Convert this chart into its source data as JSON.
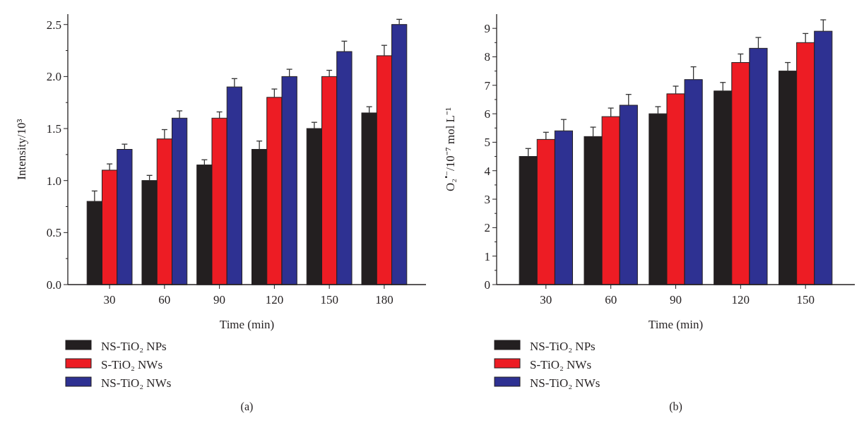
{
  "chart_data": [
    {
      "type": "bar",
      "title": "(a)",
      "xlabel": "Time (min)",
      "ylabel": "Intensity/10³",
      "categories": [
        "30",
        "60",
        "90",
        "120",
        "150",
        "180"
      ],
      "ylim": [
        0,
        2.6
      ],
      "yticks": [
        {
          "value": 0,
          "label": "0.0"
        },
        {
          "value": 0.25,
          "label": null
        },
        {
          "value": 0.5,
          "label": "0.5"
        },
        {
          "value": 0.75,
          "label": null
        },
        {
          "value": 1,
          "label": "1.0"
        },
        {
          "value": 1.25,
          "label": null
        },
        {
          "value": 1.5,
          "label": "1.5"
        },
        {
          "value": 1.75,
          "label": null
        },
        {
          "value": 2,
          "label": "2.0"
        },
        {
          "value": 2.25,
          "label": null
        },
        {
          "value": 2.5,
          "label": "2.5"
        }
      ],
      "legend": "bottom left",
      "series": [
        {
          "name": "NS-TiO₂ NPs",
          "color": "#231f20",
          "values": [
            0.8,
            1.0,
            1.15,
            1.3,
            1.5,
            1.65
          ],
          "errors": [
            [
              0.8,
              0.9
            ],
            [
              1.0,
              1.05
            ],
            [
              1.15,
              1.2
            ],
            [
              1.3,
              1.38
            ],
            [
              1.5,
              1.56
            ],
            [
              1.65,
              1.71
            ]
          ]
        },
        {
          "name": "S-TiO₂ NWs",
          "color": "#ed1c24",
          "values": [
            1.1,
            1.4,
            1.6,
            1.8,
            2.0,
            2.2
          ],
          "errors": [
            [
              1.1,
              1.16
            ],
            [
              1.4,
              1.49
            ],
            [
              1.6,
              1.66
            ],
            [
              1.8,
              1.88
            ],
            [
              2.0,
              2.06
            ],
            [
              2.2,
              2.3
            ]
          ]
        },
        {
          "name": "NS-TiO₂ NWs",
          "color": "#2e3192",
          "values": [
            1.3,
            1.6,
            1.9,
            2.0,
            2.24,
            2.5
          ],
          "errors": [
            [
              1.3,
              1.35
            ],
            [
              1.6,
              1.67
            ],
            [
              1.9,
              1.98
            ],
            [
              2.0,
              2.07
            ],
            [
              2.24,
              2.34
            ],
            [
              2.5,
              2.55
            ]
          ]
        }
      ]
    },
    {
      "type": "bar",
      "title": "(b)",
      "xlabel": "Time (min)",
      "ylabel": "O₂$^{•−}$/10⁻⁷ mol L⁻¹",
      "categories": [
        "30",
        "60",
        "90",
        "120",
        "150"
      ],
      "ylim": [
        0,
        9.5
      ],
      "yticks": [
        0,
        {
          "value": 0.5,
          "label": null
        },
        1,
        {
          "value": 1.5,
          "label": null
        },
        2,
        {
          "value": 2.5,
          "label": null
        },
        3,
        {
          "value": 3.5,
          "label": null
        },
        4,
        {
          "value": 4.5,
          "label": null
        },
        5,
        {
          "value": 5.5,
          "label": null
        },
        6,
        {
          "value": 6.5,
          "label": null
        },
        7,
        {
          "value": 7.5,
          "label": null
        },
        8,
        {
          "value": 8.5,
          "label": null
        },
        9
      ],
      "legend": "bottom left",
      "series": [
        {
          "name": "NS-TiO₂ NPs",
          "color": "#231f20",
          "values": [
            4.5,
            5.2,
            6.0,
            6.8,
            7.5
          ],
          "errors": [
            [
              4.5,
              4.78
            ],
            [
              5.2,
              5.53
            ],
            [
              6.0,
              6.25
            ],
            [
              6.8,
              7.1
            ],
            [
              7.5,
              7.8
            ]
          ]
        },
        {
          "name": "S-TiO₂ NWs",
          "color": "#ed1c24",
          "values": [
            5.1,
            5.9,
            6.7,
            7.8,
            8.5
          ],
          "errors": [
            [
              5.1,
              5.35
            ],
            [
              5.9,
              6.2
            ],
            [
              6.7,
              6.97
            ],
            [
              7.8,
              8.1
            ],
            [
              8.5,
              8.82
            ]
          ]
        },
        {
          "name": "NS-TiO₂ NWs",
          "color": "#2e3192",
          "values": [
            5.4,
            6.3,
            7.2,
            8.3,
            8.9
          ],
          "errors": [
            [
              5.4,
              5.8
            ],
            [
              6.3,
              6.68
            ],
            [
              7.2,
              7.65
            ],
            [
              8.3,
              8.68
            ],
            [
              8.9,
              9.3
            ]
          ]
        }
      ]
    }
  ]
}
